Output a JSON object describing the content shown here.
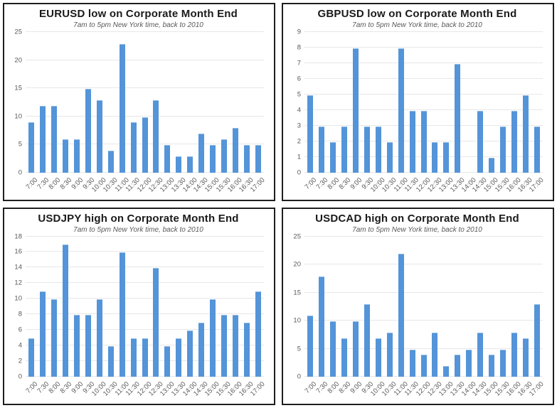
{
  "page": {
    "background": "#ffffff",
    "layout": "2x2-chart-grid"
  },
  "colors": {
    "bar": "#5494d8",
    "bar_top_edge": "#8db9e4",
    "gridline": "#e7e7e7",
    "title": "#1a1a1a",
    "subtitle": "#595959",
    "tick_label": "#595959",
    "panel_border": "#1f1f1f"
  },
  "chart_data": [
    {
      "type": "bar",
      "title": "EURUSD low on Corporate Month End",
      "subtitle": "7am to 5pm New York time, back to 2010",
      "xlabel": "",
      "ylabel": "",
      "categories": [
        "7:00",
        "7:30",
        "8:00",
        "8:30",
        "9:00",
        "9:30",
        "10:00",
        "10:30",
        "11:00",
        "11:30",
        "12:00",
        "12:30",
        "13:00",
        "13:30",
        "14:00",
        "14:30",
        "15:00",
        "15:30",
        "16:00",
        "16:30",
        "17:00"
      ],
      "values": [
        9,
        12,
        12,
        6,
        6,
        15,
        13,
        4,
        23,
        9,
        10,
        13,
        5,
        3,
        3,
        7,
        5,
        6,
        8,
        5,
        5
      ],
      "ylim": [
        0,
        25
      ],
      "ytick_step": 5,
      "grid": true,
      "legend": "none"
    },
    {
      "type": "bar",
      "title": "GBPUSD low on Corporate Month End",
      "subtitle": "7am to 5pm New York time, back to 2010",
      "xlabel": "",
      "ylabel": "",
      "categories": [
        "7:00",
        "7:30",
        "8:00",
        "8:30",
        "9:00",
        "9:30",
        "10:00",
        "10:30",
        "11:00",
        "11:30",
        "12:00",
        "12:30",
        "13:00",
        "13:30",
        "14:00",
        "14:30",
        "15:00",
        "15:30",
        "16:00",
        "16:30",
        "17:00"
      ],
      "values": [
        5,
        3,
        2,
        3,
        8,
        3,
        3,
        2,
        8,
        4,
        4,
        2,
        2,
        7,
        0,
        4,
        1,
        3,
        4,
        5,
        3
      ],
      "ylim": [
        0,
        9
      ],
      "ytick_step": 1,
      "grid": true,
      "legend": "none"
    },
    {
      "type": "bar",
      "title": "USDJPY high on Corporate Month End",
      "subtitle": "7am to 5pm New York time, back to 2010",
      "xlabel": "",
      "ylabel": "",
      "categories": [
        "7:00",
        "7:30",
        "8:00",
        "8:30",
        "9:00",
        "9:30",
        "10:00",
        "10:30",
        "11:00",
        "11:30",
        "12:00",
        "12:30",
        "13:00",
        "13:30",
        "14:00",
        "14:30",
        "15:00",
        "15:30",
        "16:00",
        "16:30",
        "17:00"
      ],
      "values": [
        5,
        11,
        10,
        17,
        8,
        8,
        10,
        4,
        16,
        5,
        5,
        14,
        4,
        5,
        6,
        7,
        10,
        8,
        8,
        7,
        11
      ],
      "ylim": [
        0,
        18
      ],
      "ytick_step": 2,
      "grid": true,
      "legend": "none"
    },
    {
      "type": "bar",
      "title": "USDCAD high on Corporate Month End",
      "subtitle": "7am to 5pm New York time, back to 2010",
      "xlabel": "",
      "ylabel": "",
      "categories": [
        "7:00",
        "7:30",
        "8:00",
        "8:30",
        "9:00",
        "9:30",
        "10:00",
        "10:30",
        "11:00",
        "11:30",
        "12:00",
        "12:30",
        "13:00",
        "13:30",
        "14:00",
        "14:30",
        "15:00",
        "15:30",
        "16:00",
        "16:30",
        "17:00"
      ],
      "values": [
        11,
        18,
        10,
        7,
        10,
        13,
        7,
        8,
        22,
        5,
        4,
        8,
        2,
        4,
        5,
        8,
        4,
        5,
        8,
        7,
        13
      ],
      "ylim": [
        0,
        25
      ],
      "ytick_step": 5,
      "grid": true,
      "legend": "none"
    }
  ]
}
